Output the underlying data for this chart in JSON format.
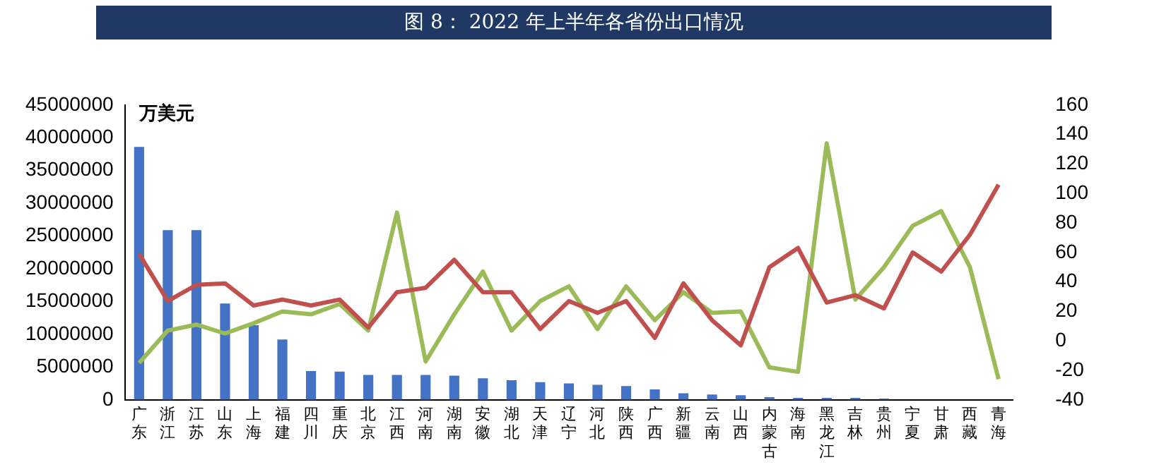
{
  "chart_data": {
    "type": "bar",
    "title": "图 8：  2022 年上半年各省份出口情况",
    "ylabel": "万美元",
    "categories": [
      "广东",
      "浙江",
      "江苏",
      "山东",
      "上海",
      "福建",
      "四川",
      "重庆",
      "北京",
      "江西",
      "河南",
      "湖南",
      "安徽",
      "湖北",
      "天津",
      "辽宁",
      "河北",
      "陕西",
      "广西",
      "新疆",
      "云南",
      "山西",
      "内蒙古",
      "海南",
      "黑龙江",
      "吉林",
      "贵州",
      "宁夏",
      "甘肃",
      "西藏",
      "青海"
    ],
    "series": [
      {
        "color": "#4472c4",
        "values": [
          38600000,
          25900000,
          25900000,
          14700000,
          11400000,
          9200000,
          4400000,
          4300000,
          3800000,
          3800000,
          3800000,
          3700000,
          3300000,
          3000000,
          2700000,
          2500000,
          2300000,
          2100000,
          1600000,
          1000000,
          800000,
          700000,
          400000,
          300000,
          300000,
          300000,
          200000,
          null,
          null,
          0,
          0
        ]
      },
      {
        "type": "line",
        "axis": "y2",
        "color": "#c0504d",
        "values": [
          59,
          27,
          38,
          39,
          24,
          28,
          24,
          28,
          9,
          33,
          36,
          55,
          33,
          33,
          8,
          27,
          19,
          27,
          2,
          39,
          14,
          -3,
          50,
          63,
          26,
          31,
          22,
          60,
          47,
          72,
          106
        ]
      },
      {
        "type": "line",
        "axis": "y2",
        "color": "#9bbb59",
        "values": [
          -15,
          7,
          11,
          5,
          12,
          20,
          18,
          25,
          7,
          87,
          -14,
          18,
          47,
          7,
          27,
          37,
          8,
          37,
          14,
          33,
          19,
          20,
          -18,
          -21,
          134,
          28,
          50,
          78,
          88,
          50,
          -26
        ]
      }
    ],
    "ylim": [
      0,
      45000000
    ],
    "yticks": [
      0,
      5000000,
      10000000,
      15000000,
      20000000,
      25000000,
      30000000,
      35000000,
      40000000,
      45000000
    ],
    "y2lim": [
      -40,
      160
    ],
    "y2ticks": [
      -40,
      -20,
      0,
      20,
      40,
      60,
      80,
      100,
      120,
      140,
      160
    ],
    "grid": false,
    "legend": false,
    "marker": "none",
    "line_style": "solid"
  }
}
